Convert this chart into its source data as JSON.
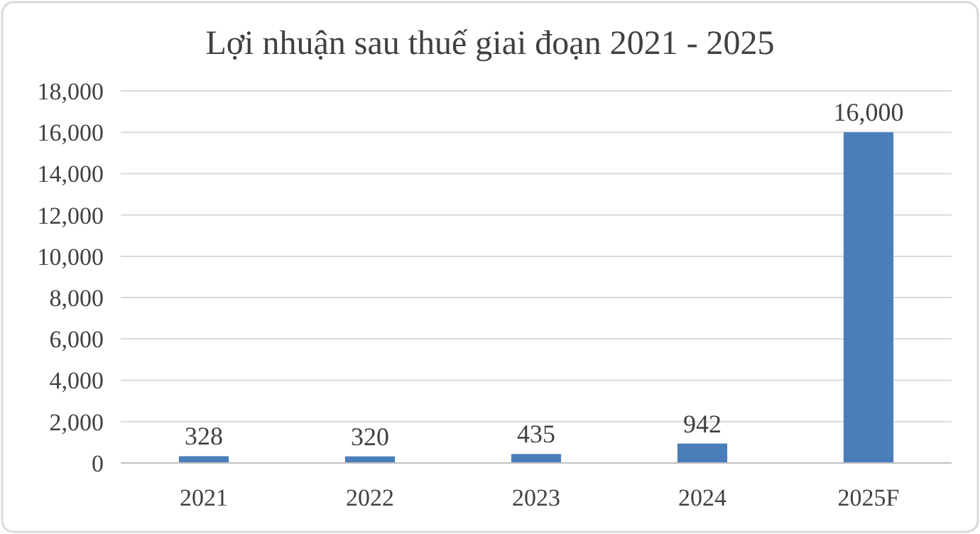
{
  "chart_data": {
    "type": "bar",
    "title": "Lợi nhuận sau thuế giai đoạn 2021 - 2025",
    "categories": [
      "2021",
      "2022",
      "2023",
      "2024",
      "2025F"
    ],
    "values": [
      328,
      320,
      435,
      942,
      16000
    ],
    "value_labels": [
      "328",
      "320",
      "435",
      "942",
      "16,000"
    ],
    "color": "#4a7ebb",
    "ylim": [
      0,
      18000
    ],
    "yticks": [
      {
        "value": 0,
        "label": "0"
      },
      {
        "value": 2000,
        "label": "2,000"
      },
      {
        "value": 4000,
        "label": "4,000"
      },
      {
        "value": 6000,
        "label": "6,000"
      },
      {
        "value": 8000,
        "label": "8,000"
      },
      {
        "value": 10000,
        "label": "10,000"
      },
      {
        "value": 12000,
        "label": "12,000"
      },
      {
        "value": 14000,
        "label": "14,000"
      },
      {
        "value": 16000,
        "label": "16,000"
      },
      {
        "value": 18000,
        "label": "18,000"
      }
    ],
    "grid": "y"
  }
}
